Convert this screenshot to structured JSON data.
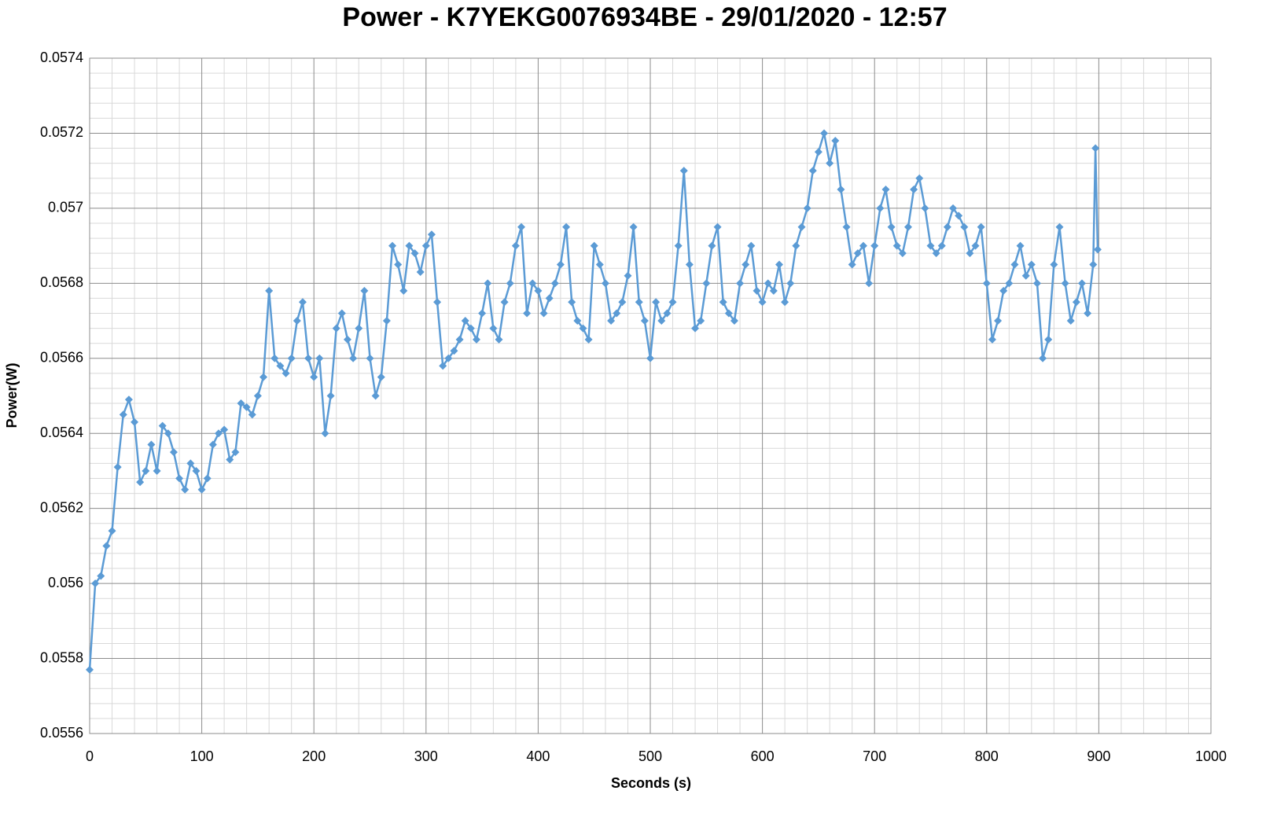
{
  "chart_data": {
    "type": "line",
    "title": "Power - K7YEKG0076934BE - 29/01/2020 - 12:57",
    "x_label": "Seconds (s)",
    "y_label": "Power(W)",
    "xlim": [
      0,
      1000
    ],
    "xticks": [
      0,
      100,
      200,
      300,
      400,
      500,
      600,
      700,
      800,
      900,
      1000
    ],
    "ylim": [
      0.0556,
      0.0574
    ],
    "yticks": [
      0.0556,
      0.0558,
      0.056,
      0.0562,
      0.0564,
      0.0566,
      0.0568,
      0.057,
      0.0572,
      0.0574
    ],
    "grid": true,
    "marker": "diamond",
    "x": [
      0,
      5,
      10,
      15,
      20,
      25,
      30,
      35,
      40,
      45,
      50,
      55,
      60,
      65,
      70,
      75,
      80,
      85,
      90,
      95,
      100,
      105,
      110,
      115,
      120,
      125,
      130,
      135,
      140,
      145,
      150,
      155,
      160,
      165,
      170,
      175,
      180,
      185,
      190,
      195,
      200,
      205,
      210,
      215,
      220,
      225,
      230,
      235,
      240,
      245,
      250,
      255,
      260,
      265,
      270,
      275,
      280,
      285,
      290,
      295,
      300,
      305,
      310,
      315,
      320,
      325,
      330,
      335,
      340,
      345,
      350,
      355,
      360,
      365,
      370,
      375,
      380,
      385,
      390,
      395,
      400,
      405,
      410,
      415,
      420,
      425,
      430,
      435,
      440,
      445,
      450,
      455,
      460,
      465,
      470,
      475,
      480,
      485,
      490,
      495,
      500,
      505,
      510,
      515,
      520,
      525,
      530,
      535,
      540,
      545,
      550,
      555,
      560,
      565,
      570,
      575,
      580,
      585,
      590,
      595,
      600,
      605,
      610,
      615,
      620,
      625,
      630,
      635,
      640,
      645,
      650,
      655,
      660,
      665,
      670,
      675,
      680,
      685,
      690,
      695,
      700,
      705,
      710,
      715,
      720,
      725,
      730,
      735,
      740,
      745,
      750,
      755,
      760,
      765,
      770,
      775,
      780,
      785,
      790,
      795,
      800,
      805,
      810,
      815,
      820,
      825,
      830,
      835,
      840,
      845,
      850,
      855,
      860,
      865,
      870,
      875,
      880,
      885,
      890,
      895,
      897,
      899
    ],
    "series": [
      {
        "name": "Power",
        "color": "#5b9bd5",
        "values": [
          0.05577,
          0.056,
          0.05602,
          0.0561,
          0.05614,
          0.05631,
          0.05645,
          0.05649,
          0.05643,
          0.05627,
          0.0563,
          0.05637,
          0.0563,
          0.05642,
          0.0564,
          0.05635,
          0.05628,
          0.05625,
          0.05632,
          0.0563,
          0.05625,
          0.05628,
          0.05637,
          0.0564,
          0.05641,
          0.05633,
          0.05635,
          0.05648,
          0.05647,
          0.05645,
          0.0565,
          0.05655,
          0.05678,
          0.0566,
          0.05658,
          0.05656,
          0.0566,
          0.0567,
          0.05675,
          0.0566,
          0.05655,
          0.0566,
          0.0564,
          0.0565,
          0.05668,
          0.05672,
          0.05665,
          0.0566,
          0.05668,
          0.05678,
          0.0566,
          0.0565,
          0.05655,
          0.0567,
          0.0569,
          0.05685,
          0.05678,
          0.0569,
          0.05688,
          0.05683,
          0.0569,
          0.05693,
          0.05675,
          0.05658,
          0.0566,
          0.05662,
          0.05665,
          0.0567,
          0.05668,
          0.05665,
          0.05672,
          0.0568,
          0.05668,
          0.05665,
          0.05675,
          0.0568,
          0.0569,
          0.05695,
          0.05672,
          0.0568,
          0.05678,
          0.05672,
          0.05676,
          0.0568,
          0.05685,
          0.05695,
          0.05675,
          0.0567,
          0.05668,
          0.05665,
          0.0569,
          0.05685,
          0.0568,
          0.0567,
          0.05672,
          0.05675,
          0.05682,
          0.05695,
          0.05675,
          0.0567,
          0.0566,
          0.05675,
          0.0567,
          0.05672,
          0.05675,
          0.0569,
          0.0571,
          0.05685,
          0.05668,
          0.0567,
          0.0568,
          0.0569,
          0.05695,
          0.05675,
          0.05672,
          0.0567,
          0.0568,
          0.05685,
          0.0569,
          0.05678,
          0.05675,
          0.0568,
          0.05678,
          0.05685,
          0.05675,
          0.0568,
          0.0569,
          0.05695,
          0.057,
          0.0571,
          0.05715,
          0.0572,
          0.05712,
          0.05718,
          0.05705,
          0.05695,
          0.05685,
          0.05688,
          0.0569,
          0.0568,
          0.0569,
          0.057,
          0.05705,
          0.05695,
          0.0569,
          0.05688,
          0.05695,
          0.05705,
          0.05708,
          0.057,
          0.0569,
          0.05688,
          0.0569,
          0.05695,
          0.057,
          0.05698,
          0.05695,
          0.05688,
          0.0569,
          0.05695,
          0.0568,
          0.05665,
          0.0567,
          0.05678,
          0.0568,
          0.05685,
          0.0569,
          0.05682,
          0.05685,
          0.0568,
          0.0566,
          0.05665,
          0.05685,
          0.05695,
          0.0568,
          0.0567,
          0.05675,
          0.0568,
          0.05672,
          0.05685,
          0.05716,
          0.05689
        ]
      }
    ]
  }
}
